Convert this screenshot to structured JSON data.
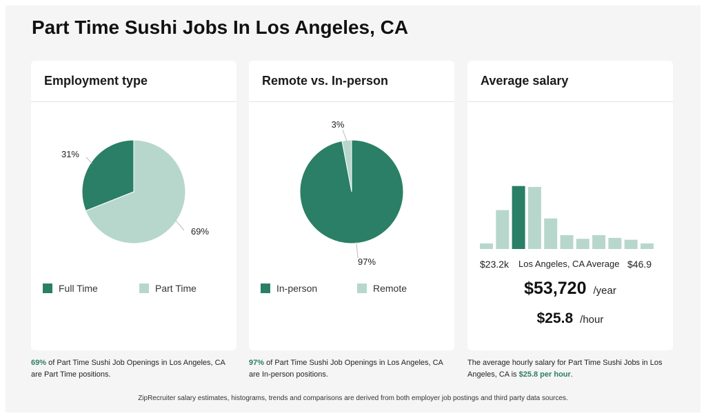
{
  "title": "Part Time Sushi Jobs In Los Angeles, CA",
  "colors": {
    "dark": "#2a7f66",
    "light": "#b7d7cc",
    "highlight": "#2e7d62"
  },
  "chart_data": [
    {
      "type": "pie",
      "title": "Employment type",
      "slices": [
        {
          "name": "Full Time",
          "value": 31,
          "label": "31%",
          "color": "#2a7f66"
        },
        {
          "name": "Part Time",
          "value": 69,
          "label": "69%",
          "color": "#b7d7cc"
        }
      ],
      "legend": [
        "Full Time",
        "Part Time"
      ]
    },
    {
      "type": "pie",
      "title": "Remote vs. In-person",
      "slices": [
        {
          "name": "Remote",
          "value": 3,
          "label": "3%",
          "color": "#b7d7cc"
        },
        {
          "name": "In-person",
          "value": 97,
          "label": "97%",
          "color": "#2a7f66"
        }
      ],
      "legend": [
        "In-person",
        "Remote"
      ]
    },
    {
      "type": "bar",
      "title": "Average salary",
      "values": [
        6,
        42,
        68,
        67,
        33,
        15,
        11,
        15,
        12,
        10,
        6
      ],
      "highlight_index": 2,
      "ylim": [
        0,
        70
      ],
      "x_min_label": "$23.2k",
      "x_mid_label": "Los Angeles, CA Average",
      "x_max_label": "$46.9"
    }
  ],
  "cards": {
    "employment": {
      "heading": "Employment type",
      "legend": [
        "Full Time",
        "Part Time"
      ],
      "caption": {
        "highlight": "69%",
        "text": " of Part Time Sushi Job Openings in Los Angeles, CA are Part Time positions."
      }
    },
    "remote": {
      "heading": "Remote vs. In-person",
      "legend": [
        "In-person",
        "Remote"
      ],
      "caption": {
        "highlight": "97%",
        "text": " of Part Time Sushi Job Openings in Los Angeles, CA are In-person positions."
      }
    },
    "salary": {
      "heading": "Average salary",
      "yearly": "$53,720",
      "yearly_unit": "/year",
      "hourly": "$25.8",
      "hourly_unit": "/hour",
      "caption": {
        "text": "The average hourly salary for Part Time Sushi Jobs in Los Angeles, CA is ",
        "highlight": "$25.8 per hour",
        "end": "."
      }
    }
  },
  "footer": "ZipRecruiter salary estimates, histograms, trends and comparisons are derived from both employer job postings and third party data sources."
}
